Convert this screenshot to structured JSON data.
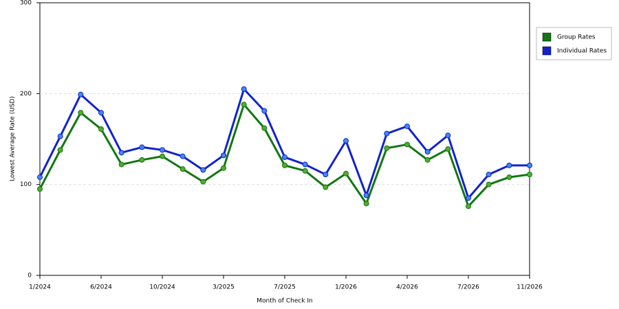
{
  "chart_data": {
    "type": "line",
    "x_label": "Month of Check In",
    "y_label": "Lowest Average Rate (USD)",
    "categories": [
      "1/2024",
      null,
      null,
      "6/2024",
      null,
      null,
      "10/2024",
      null,
      null,
      "3/2025",
      null,
      null,
      "7/2025",
      null,
      null,
      "1/2026",
      null,
      null,
      "4/2026",
      null,
      null,
      "7/2026",
      null,
      null,
      "11/2026"
    ],
    "series": [
      {
        "name": "Group Rates",
        "color": "#117711",
        "marker_color": "#55aa33",
        "values": [
          95,
          138,
          179,
          161,
          122,
          127,
          131,
          117,
          103,
          118,
          188,
          162,
          121,
          115,
          97,
          112,
          79,
          140,
          144,
          127,
          139,
          76,
          100,
          108,
          111
        ]
      },
      {
        "name": "Individual Rates",
        "color": "#1122cc",
        "marker_color": "#4488ee",
        "values": [
          108,
          153,
          199,
          179,
          135,
          141,
          138,
          131,
          116,
          132,
          205,
          181,
          130,
          122,
          111,
          148,
          88,
          156,
          164,
          136,
          154,
          85,
          111,
          121,
          121
        ]
      }
    ],
    "ylim": [
      0,
      300
    ],
    "yticks": [
      0,
      100,
      200,
      300
    ],
    "grid": true,
    "legend": "right"
  }
}
